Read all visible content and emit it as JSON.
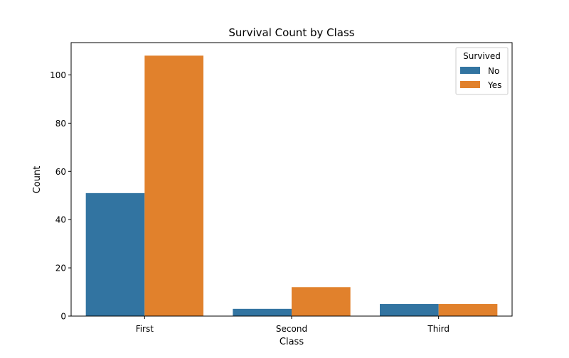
{
  "chart_data": {
    "type": "bar",
    "title": "Survival Count by Class",
    "xlabel": "Class",
    "ylabel": "Count",
    "categories": [
      "First",
      "Second",
      "Third"
    ],
    "series": [
      {
        "name": "No",
        "values": [
          51,
          3,
          5
        ],
        "color": "#3274a1"
      },
      {
        "name": "Yes",
        "values": [
          108,
          12,
          5
        ],
        "color": "#e1812c"
      }
    ],
    "ylim": [
      0,
      113.4
    ],
    "yticks": [
      0,
      20,
      40,
      60,
      80,
      100
    ],
    "legend": {
      "title": "Survived",
      "placement": "top-right"
    },
    "grid": false
  }
}
